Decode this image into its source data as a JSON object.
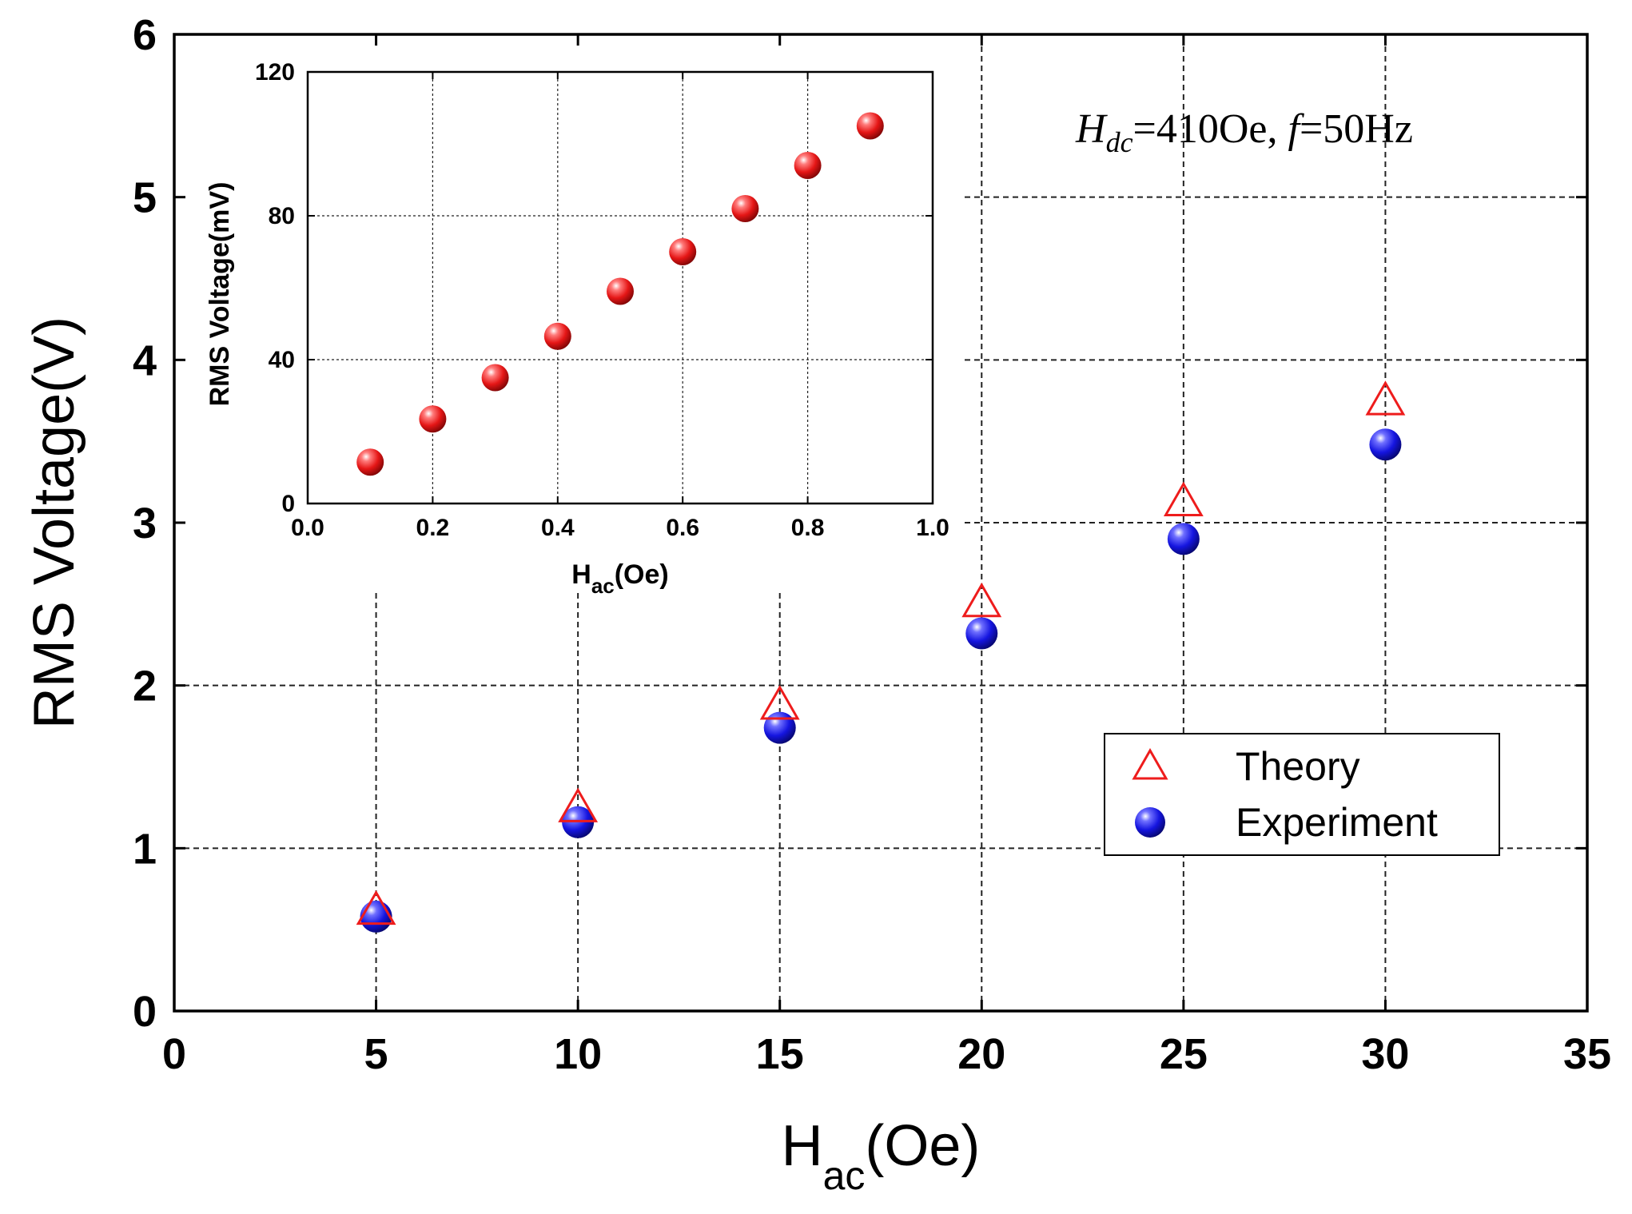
{
  "chart_data": [
    {
      "id": "main",
      "type": "scatter",
      "xlabel": "H",
      "xlabel_sub": "ac",
      "xlabel_unit": "(Oe)",
      "ylabel": "RMS Voltage(V)",
      "xlim": [
        0,
        35
      ],
      "ylim": [
        0,
        6
      ],
      "xticks": [
        0,
        5,
        10,
        15,
        20,
        25,
        30,
        35
      ],
      "yticks": [
        0,
        1,
        2,
        3,
        4,
        5,
        6
      ],
      "grid": true,
      "annotation": {
        "h": "H",
        "h_sub": "dc",
        "value": "=410Oe, ",
        "f": "f",
        "f_value": "=50Hz"
      },
      "legend_position": "center-right",
      "series": [
        {
          "name": "Theory",
          "marker": "open-triangle",
          "color": "#ee1c1c",
          "x": [
            5,
            10,
            15,
            20,
            25,
            30
          ],
          "y": [
            0.61,
            1.24,
            1.87,
            2.5,
            3.12,
            3.74
          ]
        },
        {
          "name": "Experiment",
          "marker": "filled-sphere",
          "color": "#1515e0",
          "x": [
            5,
            10,
            15,
            20,
            25,
            30
          ],
          "y": [
            0.58,
            1.16,
            1.74,
            2.32,
            2.9,
            3.48
          ]
        }
      ]
    },
    {
      "id": "inset",
      "type": "scatter",
      "xlabel": "H",
      "xlabel_sub": "ac",
      "xlabel_unit": "(Oe)",
      "ylabel": "RMS Voltage(mV)",
      "xlim": [
        0,
        1.0
      ],
      "ylim": [
        0,
        120
      ],
      "xticks": [
        0.0,
        0.2,
        0.4,
        0.6,
        0.8,
        1.0
      ],
      "xtick_labels": [
        "0.0",
        "0.2",
        "0.4",
        "0.6",
        "0.8",
        "1.0"
      ],
      "yticks": [
        0,
        40,
        80,
        120
      ],
      "grid": true,
      "series": [
        {
          "name": "",
          "marker": "filled-sphere",
          "color": "#e51616",
          "x": [
            0.1,
            0.2,
            0.3,
            0.4,
            0.5,
            0.6,
            0.7,
            0.8,
            0.9
          ],
          "y": [
            11.5,
            23.5,
            35,
            46.5,
            59,
            70,
            82,
            94,
            105
          ]
        }
      ]
    }
  ]
}
